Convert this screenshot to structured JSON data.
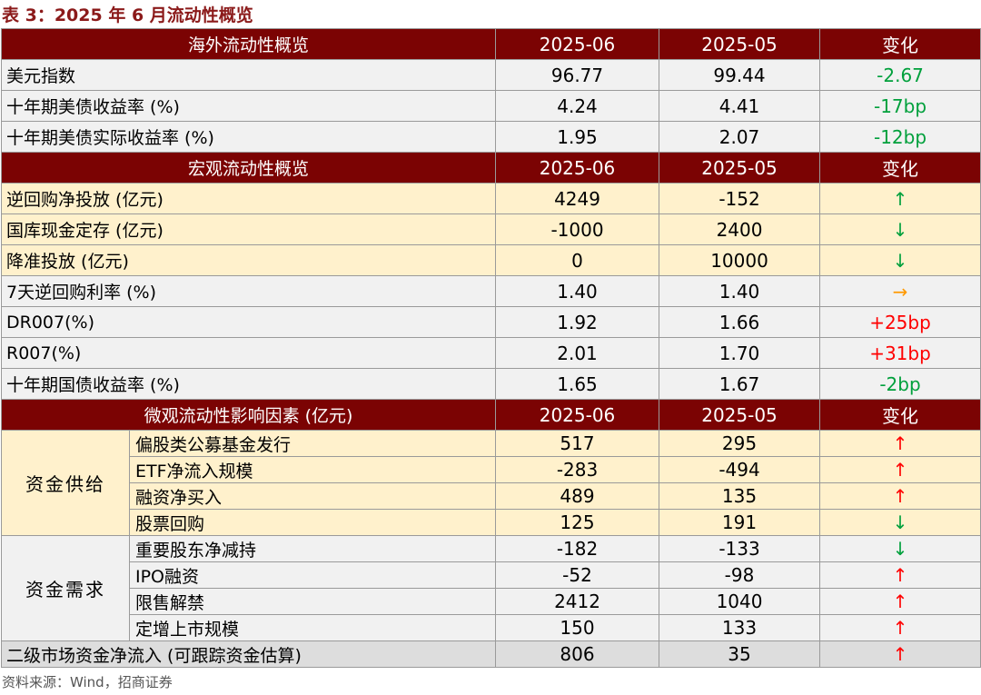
{
  "title": "表 3：2025 年 6 月流动性概览",
  "source": "资料来源：Wind，招商证券",
  "colors": {
    "header_bg": "#7b0303",
    "up_red": "#ff0000",
    "down_green": "#00a03c",
    "flat_orange": "#ff9900"
  },
  "sections": {
    "overseas": {
      "header": {
        "label": "海外流动性概览",
        "col1": "2025-06",
        "col2": "2025-05",
        "col3": "变化"
      },
      "rows": [
        {
          "label": "美元指数",
          "v1": "96.77",
          "v2": "99.44",
          "chg": "-2.67"
        },
        {
          "label": "十年期美债收益率 (%)",
          "v1": "4.24",
          "v2": "4.41",
          "chg": "-17bp"
        },
        {
          "label": "十年期美债实际收益率 (%)",
          "v1": "1.95",
          "v2": "2.07",
          "chg": "-12bp"
        }
      ]
    },
    "macro": {
      "header": {
        "label": "宏观流动性概览",
        "col1": "2025-06",
        "col2": "2025-05",
        "col3": "变化"
      },
      "rows": [
        {
          "label": "逆回购净投放 (亿元)",
          "v1": "4249",
          "v2": "-152",
          "chg": "↑"
        },
        {
          "label": "国库现金定存 (亿元)",
          "v1": "-1000",
          "v2": "2400",
          "chg": "↓"
        },
        {
          "label": "降准投放 (亿元)",
          "v1": "0",
          "v2": "10000",
          "chg": "↓"
        },
        {
          "label": "7天逆回购利率 (%)",
          "v1": "1.40",
          "v2": "1.40",
          "chg": "→"
        },
        {
          "label": "DR007(%)",
          "v1": "1.92",
          "v2": "1.66",
          "chg": "+25bp"
        },
        {
          "label": "R007(%)",
          "v1": "2.01",
          "v2": "1.70",
          "chg": "+31bp"
        },
        {
          "label": "十年期国债收益率 (%)",
          "v1": "1.65",
          "v2": "1.67",
          "chg": "-2bp"
        }
      ]
    },
    "micro": {
      "header": {
        "label": "微观流动性影响因素 (亿元)",
        "col1": "2025-06",
        "col2": "2025-05",
        "col3": "变化"
      },
      "supply": {
        "group": "资金供给",
        "rows": [
          {
            "label": "偏股类公募基金发行",
            "v1": "517",
            "v2": "295",
            "chg": "↑"
          },
          {
            "label": "ETF净流入规模",
            "v1": "-283",
            "v2": "-494",
            "chg": "↑"
          },
          {
            "label": "融资净买入",
            "v1": "489",
            "v2": "135",
            "chg": "↑"
          },
          {
            "label": "股票回购",
            "v1": "125",
            "v2": "191",
            "chg": "↓"
          }
        ]
      },
      "demand": {
        "group": "资金需求",
        "rows": [
          {
            "label": "重要股东净减持",
            "v1": "-182",
            "v2": "-133",
            "chg": "↓"
          },
          {
            "label": "IPO融资",
            "v1": "-52",
            "v2": "-98",
            "chg": "↑"
          },
          {
            "label": "限售解禁",
            "v1": "2412",
            "v2": "1040",
            "chg": "↑"
          },
          {
            "label": "定增上市规模",
            "v1": "150",
            "v2": "133",
            "chg": "↑"
          }
        ]
      },
      "net": {
        "label": "二级市场资金净流入 (可跟踪资金估算)",
        "v1": "806",
        "v2": "35",
        "chg": "↑"
      }
    }
  }
}
